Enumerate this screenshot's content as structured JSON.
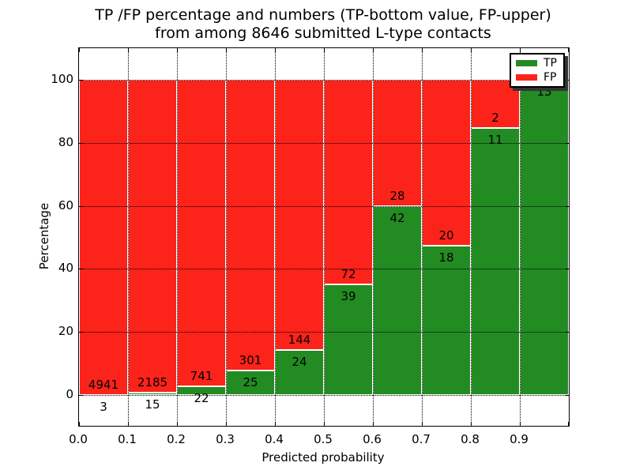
{
  "figure": {
    "title_line1": "TP /FP percentage and numbers (TP-bottom value, FP-upper)",
    "title_line2": "from among 8646 submitted L-type contacts"
  },
  "axes": {
    "xlabel": "Predicted probability",
    "ylabel": "Percentage"
  },
  "legend": {
    "items": [
      {
        "label": "TP",
        "color": "#228b22"
      },
      {
        "label": "FP",
        "color": "#fb231a"
      }
    ]
  },
  "colors": {
    "tp": "#228b22",
    "fp": "#fb231a",
    "bar_edge": "#ffffff",
    "grid": "#000000",
    "legend_shadow": "#333333"
  },
  "chart_data": {
    "type": "bar",
    "stacked": true,
    "title": "TP /FP percentage and numbers (TP-bottom value, FP-upper) from among 8646 submitted L-type contacts",
    "total_submitted": 8646,
    "xlabel": "Predicted probability",
    "ylabel": "Percentage",
    "x_bin_edges": [
      0.0,
      0.1,
      0.2,
      0.3,
      0.4,
      0.5,
      0.6,
      0.7,
      0.8,
      0.9,
      1.0
    ],
    "x_tick_labels": [
      "0.0",
      "0.1",
      "0.2",
      "0.3",
      "0.4",
      "0.5",
      "0.6",
      "0.7",
      "0.8",
      "0.9"
    ],
    "y_tick_values": [
      0,
      20,
      40,
      60,
      80,
      100
    ],
    "y_tick_labels": [
      "0",
      "20",
      "40",
      "60",
      "80",
      "100"
    ],
    "ylim": [
      -10,
      110
    ],
    "grid": true,
    "legend_position": "upper right",
    "series": [
      {
        "name": "TP",
        "color": "#228b22",
        "counts": [
          3,
          15,
          22,
          25,
          24,
          39,
          42,
          18,
          11,
          13
        ]
      },
      {
        "name": "FP",
        "color": "#fb231a",
        "counts": [
          4941,
          2185,
          741,
          301,
          144,
          72,
          28,
          20,
          2,
          null
        ]
      }
    ],
    "tp_percent_heights": [
      0.06,
      0.68,
      2.88,
      7.67,
      14.29,
      35.14,
      60.0,
      47.37,
      84.62,
      100.0
    ]
  }
}
